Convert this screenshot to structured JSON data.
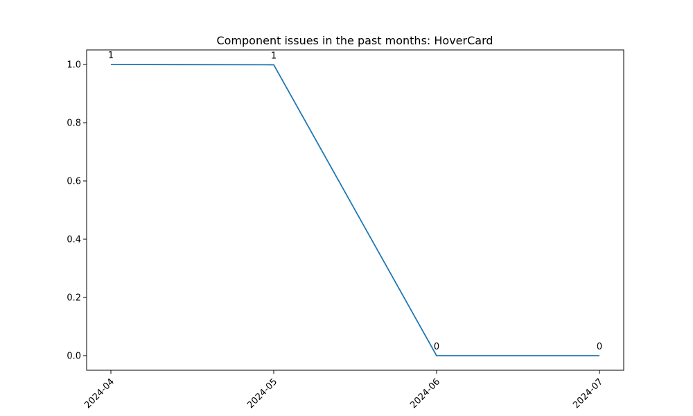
{
  "chart_data": {
    "type": "line",
    "title": "Component issues in the past months: HoverCard",
    "xlabel": "",
    "ylabel": "",
    "categories": [
      "2024-04",
      "2024-05",
      "2024-06",
      "2024-07"
    ],
    "series": [
      {
        "values": [
          1,
          0.999,
          0,
          0
        ],
        "color": "#1f77b4"
      }
    ],
    "data_labels": [
      "1",
      "1",
      "0",
      "0"
    ],
    "ylim": [
      -0.05,
      1.05
    ],
    "yticks": [
      "0.0",
      "0.2",
      "0.4",
      "0.6",
      "0.8",
      "1.0"
    ],
    "ytick_values": [
      0,
      0.2,
      0.4,
      0.6,
      0.8,
      1.0
    ],
    "grid": false,
    "legend": "none"
  }
}
